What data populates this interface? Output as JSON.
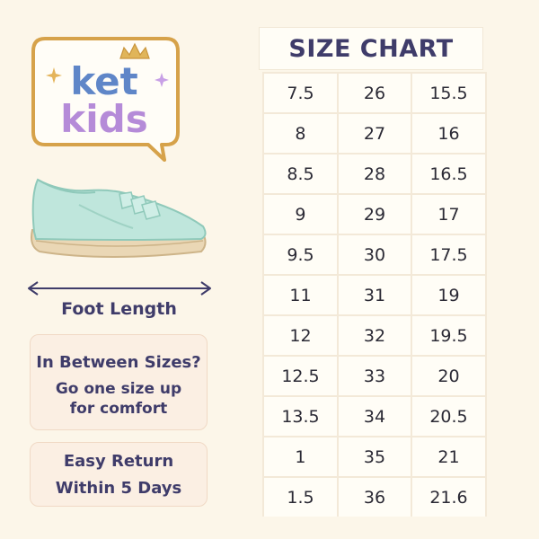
{
  "brand": {
    "line1": "ket",
    "line2": "kids",
    "colors": {
      "frame": "#d6a24a",
      "ket": "#5f86c8",
      "kids": "#b58bd8",
      "sparkle": "#c8a0e6"
    }
  },
  "illustration": {
    "type": "mint shoe",
    "icon": "shoe-icon",
    "colors": {
      "upper": "#bfe6dc",
      "sole": "#ead7b5"
    }
  },
  "measure": {
    "label": "Foot Length",
    "icon": "double-arrow-icon"
  },
  "notes": {
    "in_between": {
      "title": "In Between Sizes?",
      "body": "Go one size up for comfort"
    },
    "returns": {
      "title": "Easy Return Within 5 Days"
    }
  },
  "size_chart": {
    "title": "SIZE CHART",
    "rows": [
      [
        "7.5",
        "26",
        "15.5"
      ],
      [
        "8",
        "27",
        "16"
      ],
      [
        "8.5",
        "28",
        "16.5"
      ],
      [
        "9",
        "29",
        "17"
      ],
      [
        "9.5",
        "30",
        "17.5"
      ],
      [
        "11",
        "31",
        "19"
      ],
      [
        "12",
        "32",
        "19.5"
      ],
      [
        "12.5",
        "33",
        "20"
      ],
      [
        "13.5",
        "34",
        "20.5"
      ],
      [
        "1",
        "35",
        "21"
      ],
      [
        "1.5",
        "36",
        "21.6"
      ]
    ]
  }
}
